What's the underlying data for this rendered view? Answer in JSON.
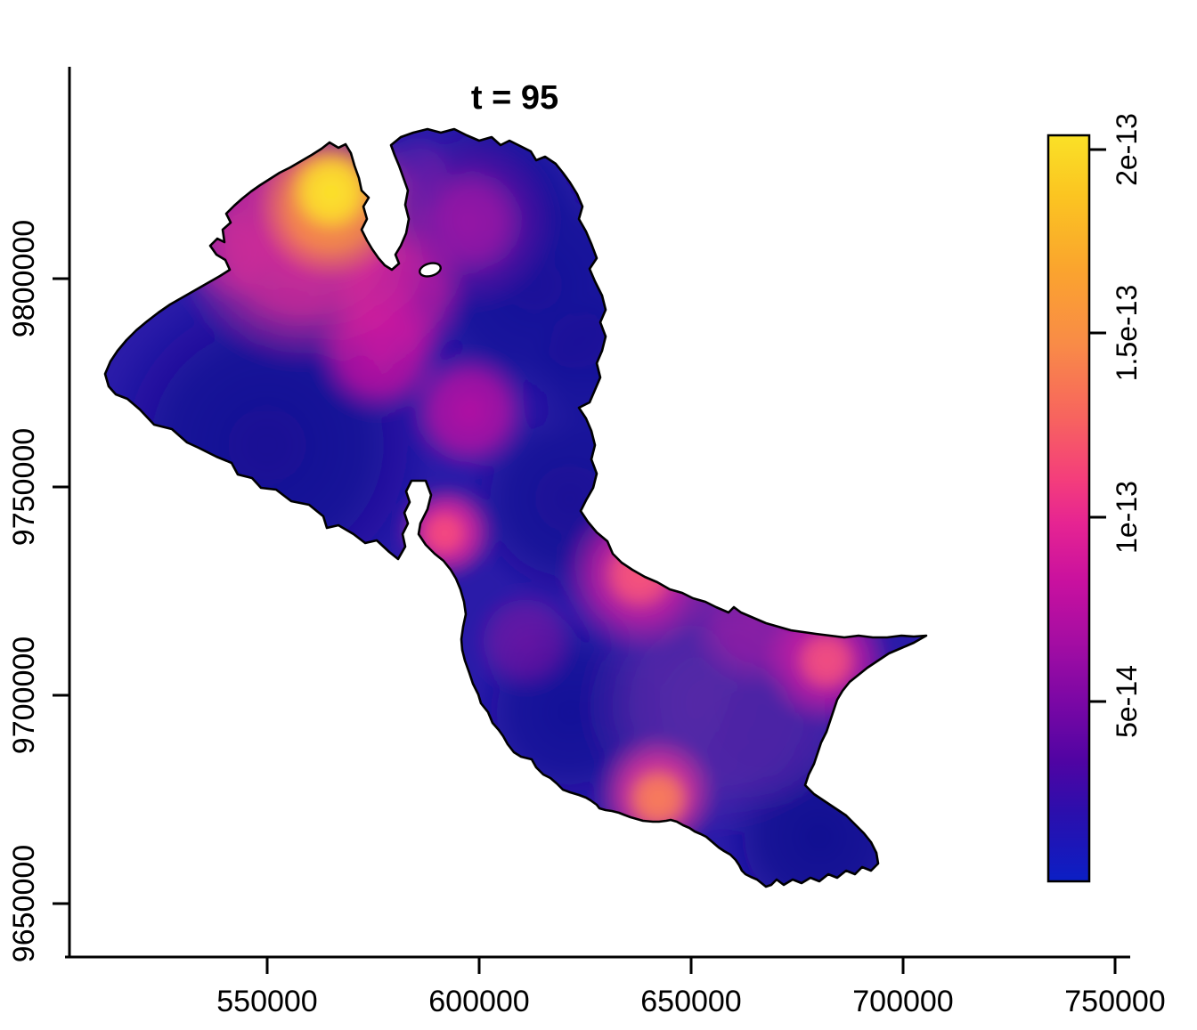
{
  "title": "t = 95",
  "map": {
    "base_color": "#2A1BA8",
    "outline_color": "#000000",
    "background_color": "#FFFFFF"
  },
  "chart_data": {
    "type": "heatmap",
    "title": "t = 95",
    "xlabel": "",
    "ylabel": "",
    "grid": false,
    "x_range": [
      505900,
      706500
    ],
    "y_range": [
      9637000,
      9850000
    ],
    "x_ticks": [
      {
        "value": 550000,
        "label": "550000"
      },
      {
        "value": 600000,
        "label": "600000"
      },
      {
        "value": 650000,
        "label": "650000"
      },
      {
        "value": 700000,
        "label": "700000"
      },
      {
        "value": 750000,
        "label": "750000"
      }
    ],
    "y_ticks": [
      {
        "value": 9650000,
        "label": "9650000"
      },
      {
        "value": 9700000,
        "label": "9700000"
      },
      {
        "value": 9750000,
        "label": "9750000"
      },
      {
        "value": 9800000,
        "label": "9800000"
      }
    ],
    "colorbar": {
      "position": "right",
      "value_range": [
        0,
        2.04e-13
      ],
      "ticks": [
        {
          "value": 5e-14,
          "label": "5e-14"
        },
        {
          "value": 1e-13,
          "label": "1e-13"
        },
        {
          "value": 1.5e-13,
          "label": "1.5e-13"
        },
        {
          "value": 2e-13,
          "label": "2e-13"
        }
      ],
      "stops": [
        {
          "offset": 0.0,
          "color": "#FAE127"
        },
        {
          "offset": 0.08,
          "color": "#FBC521"
        },
        {
          "offset": 0.18,
          "color": "#FAA42E"
        },
        {
          "offset": 0.28,
          "color": "#F98B47"
        },
        {
          "offset": 0.38,
          "color": "#F7635F"
        },
        {
          "offset": 0.46,
          "color": "#F43E7B"
        },
        {
          "offset": 0.52,
          "color": "#E62492"
        },
        {
          "offset": 0.6,
          "color": "#C8109F"
        },
        {
          "offset": 0.68,
          "color": "#A40DA3"
        },
        {
          "offset": 0.76,
          "color": "#7A07A5"
        },
        {
          "offset": 0.84,
          "color": "#4F04A3"
        },
        {
          "offset": 0.91,
          "color": "#2A0FAD"
        },
        {
          "offset": 1.0,
          "color": "#0B1FC5"
        }
      ]
    },
    "hotspots": [
      {
        "name": "west-lobe-dark",
        "e": 550000,
        "n": 9760000,
        "r": 39900,
        "color": "#140D92",
        "opacity": 0.9,
        "value": 2e-14
      },
      {
        "name": "north-lobe-dark-e",
        "e": 613000,
        "n": 9798500,
        "r": 31500,
        "color": "#150E96",
        "opacity": 0.85,
        "value": 2e-14
      },
      {
        "name": "north-lobe-dark-n",
        "e": 604600,
        "n": 9822000,
        "r": 18900,
        "color": "#170F9A",
        "opacity": 0.8,
        "value": 2e-14
      },
      {
        "name": "mid-channel-dark",
        "e": 621400,
        "n": 9747200,
        "r": 25200,
        "color": "#161093",
        "opacity": 0.85,
        "value": 2e-14
      },
      {
        "name": "bulge-west-dark",
        "e": 621400,
        "n": 9695900,
        "r": 23100,
        "color": "#131095",
        "opacity": 0.85,
        "value": 2e-14
      },
      {
        "name": "south-tail-dark",
        "e": 680200,
        "n": 9666000,
        "r": 23100,
        "color": "#11108F",
        "opacity": 0.9,
        "value": 1.5e-14
      },
      {
        "name": "east-coast-dark",
        "e": 629800,
        "n": 9777100,
        "r": 18900,
        "color": "#150E96",
        "opacity": 0.7,
        "value": 2e-14
      },
      {
        "name": "se-bulge-purple",
        "e": 655000,
        "n": 9698100,
        "r": 31500,
        "color": "#5E2BA6",
        "opacity": 0.85,
        "value": 5e-14
      },
      {
        "name": "se-bulge-purple-2",
        "e": 669700,
        "n": 9691700,
        "r": 18900,
        "color": "#4A22A4",
        "opacity": 0.7,
        "value": 4.5e-14
      },
      {
        "name": "cape-coast-strip",
        "e": 665500,
        "n": 9718400,
        "r": 16800,
        "color": "#B01BA4",
        "opacity": 0.65,
        "value": 8e-14
      },
      {
        "name": "sw-coast-strip",
        "e": 610900,
        "n": 9713000,
        "r": 12600,
        "color": "#8E17A2",
        "opacity": 0.6,
        "value": 6.5e-14
      },
      {
        "name": "north-lobe-tinge",
        "e": 585700,
        "n": 9826300,
        "r": 8400,
        "color": "#6A1FA8",
        "opacity": 0.6,
        "value": 5.5e-14
      },
      {
        "name": "nw-lobe-west-purple",
        "e": 540500,
        "n": 9806000,
        "r": 11600,
        "color": "#7A1FA5",
        "opacity": 0.8,
        "value": 6e-14
      },
      {
        "name": "north-lobe-halo",
        "e": 597700,
        "n": 9813500,
        "r": 21000,
        "color": "#9B17A6",
        "opacity": 0.55,
        "value": 7e-14
      },
      {
        "name": "north-lobe-blob",
        "e": 597700,
        "n": 9813500,
        "r": 13000,
        "color": "#9B17A6",
        "opacity": 0.9,
        "value": 7e-14
      },
      {
        "name": "neck-ridge",
        "e": 581500,
        "n": 9796400,
        "r": 16800,
        "color": "#C81AA0",
        "opacity": 0.85,
        "value": 9e-14
      },
      {
        "name": "mid-west-blob",
        "e": 576300,
        "n": 9782500,
        "r": 15800,
        "color": "#CC14A0",
        "opacity": 0.9,
        "value": 9.5e-14
      },
      {
        "name": "mid-blob",
        "e": 597700,
        "n": 9768200,
        "r": 14700,
        "color": "#C013A2",
        "opacity": 0.9,
        "value": 9e-14
      },
      {
        "name": "nw-lobe-pink-wash",
        "e": 558400,
        "n": 9810300,
        "r": 31500,
        "color": "#E02E95",
        "opacity": 0.95,
        "value": 1.1e-13
      },
      {
        "name": "isthmus-spot-halo",
        "e": 592400,
        "n": 9739100,
        "r": 11600,
        "color": "#E8289A",
        "opacity": 0.95,
        "value": 1.1e-13
      },
      {
        "name": "isthmus-spot-core",
        "e": 591800,
        "n": 9738900,
        "r": 5900,
        "color": "#F4497F",
        "opacity": 1.0,
        "value": 1.3e-13
      },
      {
        "name": "central-spot-halo",
        "e": 637800,
        "n": 9729100,
        "r": 18900,
        "color": "#D620A0",
        "opacity": 0.9,
        "value": 1.1e-13
      },
      {
        "name": "central-spot-core",
        "e": 637800,
        "n": 9729100,
        "r": 9500,
        "color": "#F7557B",
        "opacity": 1.0,
        "value": 1.35e-13
      },
      {
        "name": "cape-spot-halo",
        "e": 681900,
        "n": 9708300,
        "r": 15800,
        "color": "#CC1AA2",
        "opacity": 0.9,
        "value": 1e-13
      },
      {
        "name": "cape-spot-core",
        "e": 681900,
        "n": 9708300,
        "r": 8000,
        "color": "#F24F80",
        "opacity": 1.0,
        "value": 1.25e-13
      },
      {
        "name": "south-coast-halo",
        "e": 641800,
        "n": 9676100,
        "r": 14700,
        "color": "#E23497",
        "opacity": 0.95,
        "value": 1.1e-13
      },
      {
        "name": "south-coast-core",
        "e": 642200,
        "n": 9675200,
        "r": 8000,
        "color": "#F97E59",
        "opacity": 1.0,
        "value": 1.5e-13
      },
      {
        "name": "nw-lobe-orange",
        "e": 565100,
        "n": 9817700,
        "r": 17900,
        "color": "#FB9C3A",
        "opacity": 0.95,
        "value": 1.7e-13
      },
      {
        "name": "nw-lobe-yellow-max",
        "e": 565100,
        "n": 9820900,
        "r": 10100,
        "color": "#FCE32B",
        "opacity": 1.0,
        "value": 2.04e-13
      }
    ]
  }
}
